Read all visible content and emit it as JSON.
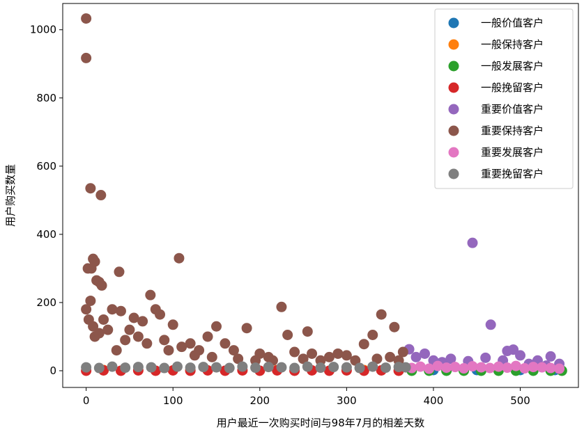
{
  "chart_data": {
    "type": "scatter",
    "xlabel": "用户最近一次购买时间与98年7月的相差天数",
    "ylabel": "用户购买数量",
    "xlim": [
      -27,
      567
    ],
    "ylim": [
      -49,
      1077
    ],
    "xticks": [
      0,
      100,
      200,
      300,
      400,
      500
    ],
    "yticks": [
      0,
      200,
      400,
      600,
      800,
      1000
    ],
    "legend": "upper right",
    "series": [
      {
        "name": "一般价值客户",
        "color": "#1f77b4",
        "x": [
          400,
          450,
          500,
          540
        ],
        "values": [
          2,
          2,
          2,
          2
        ]
      },
      {
        "name": "一般保持客户",
        "color": "#ff7f0e",
        "x": [
          20,
          120,
          220,
          320
        ],
        "values": [
          2,
          2,
          2,
          2
        ]
      },
      {
        "name": "一般发展客户",
        "color": "#2ca02c",
        "x": [
          375,
          395,
          415,
          435,
          455,
          475,
          495,
          515,
          535,
          548
        ],
        "values": [
          0,
          0,
          0,
          0,
          0,
          0,
          0,
          0,
          0,
          0
        ]
      },
      {
        "name": "一般挽留客户",
        "color": "#d62728",
        "x": [
          0,
          20,
          40,
          60,
          80,
          100,
          120,
          140,
          160,
          180,
          200,
          220,
          240,
          260,
          280,
          300,
          320,
          340,
          360
        ],
        "values": [
          0,
          1,
          0,
          1,
          0,
          1,
          0,
          1,
          0,
          1,
          0,
          1,
          0,
          1,
          0,
          1,
          0,
          1,
          0
        ]
      },
      {
        "name": "重要价值客户",
        "color": "#9467bd",
        "x": [
          445,
          466,
          372,
          485,
          492,
          380,
          390,
          400,
          410,
          420,
          440,
          460,
          480,
          500,
          510,
          520,
          530,
          535,
          545
        ],
        "values": [
          375,
          135,
          63,
          58,
          62,
          40,
          50,
          30,
          25,
          35,
          28,
          38,
          30,
          45,
          20,
          30,
          15,
          42,
          20
        ]
      },
      {
        "name": "重要保持客户",
        "color": "#8c564b",
        "x": [
          0,
          0,
          5,
          17,
          8,
          10,
          2,
          6,
          38,
          107,
          12,
          15,
          18,
          74,
          225,
          340,
          5,
          30,
          40,
          55,
          65,
          80,
          85,
          100,
          120,
          150,
          160,
          185,
          255,
          232,
          330,
          355,
          320,
          290,
          260,
          200,
          140,
          50,
          20,
          60,
          90,
          110,
          130,
          170,
          210,
          240,
          280,
          300,
          350,
          365,
          10,
          25,
          45,
          70,
          95,
          125,
          0,
          3,
          8,
          15,
          35,
          145,
          175,
          195,
          215,
          250,
          270,
          310,
          335,
          360
        ],
        "values": [
          1033,
          917,
          535,
          515,
          328,
          320,
          300,
          300,
          290,
          330,
          265,
          260,
          250,
          222,
          187,
          165,
          205,
          180,
          175,
          155,
          145,
          180,
          165,
          135,
          80,
          130,
          80,
          125,
          115,
          105,
          105,
          128,
          78,
          50,
          50,
          50,
          100,
          120,
          150,
          100,
          90,
          70,
          60,
          60,
          40,
          55,
          40,
          45,
          40,
          55,
          100,
          120,
          90,
          80,
          60,
          45,
          180,
          150,
          130,
          110,
          60,
          40,
          35,
          30,
          30,
          35,
          30,
          30,
          35,
          30
        ]
      },
      {
        "name": "重要发展客户",
        "color": "#e377c2",
        "x": [
          375,
          385,
          395,
          405,
          415,
          425,
          435,
          445,
          455,
          465,
          475,
          485,
          495,
          505,
          515,
          525,
          535,
          545
        ],
        "values": [
          8,
          12,
          6,
          14,
          9,
          11,
          7,
          13,
          10,
          8,
          12,
          9,
          14,
          7,
          11,
          10,
          8,
          6
        ]
      },
      {
        "name": "重要挽留客户",
        "color": "#7f7f7f",
        "x": [
          0,
          15,
          30,
          45,
          60,
          75,
          90,
          105,
          120,
          135,
          150,
          165,
          180,
          195,
          210,
          225,
          240,
          255,
          270,
          285,
          300,
          315,
          330,
          345,
          360,
          368
        ],
        "values": [
          10,
          8,
          12,
          9,
          11,
          10,
          8,
          12,
          9,
          11,
          10,
          8,
          12,
          9,
          11,
          10,
          8,
          12,
          9,
          11,
          10,
          8,
          12,
          9,
          11,
          10
        ]
      }
    ]
  }
}
